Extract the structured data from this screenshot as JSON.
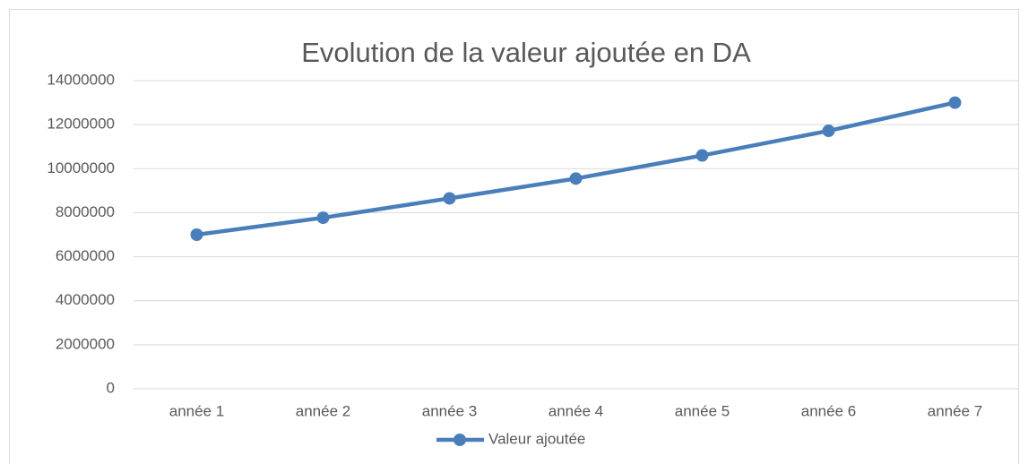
{
  "chart_data": {
    "type": "line",
    "title": "Evolution de la valeur ajoutée en DA",
    "categories": [
      "année 1",
      "année 2",
      "année 3",
      "année 4",
      "année 5",
      "année 6",
      "année 7"
    ],
    "series": [
      {
        "name": "Valeur ajoutée",
        "color": "#4a7ebb",
        "values": [
          7000000,
          7770000,
          8650000,
          9550000,
          10600000,
          11720000,
          13000000
        ]
      }
    ],
    "ylim": [
      0,
      14000000
    ],
    "yticks": [
      0,
      2000000,
      4000000,
      6000000,
      8000000,
      10000000,
      12000000,
      14000000
    ],
    "grid": true,
    "legend": "bottom"
  }
}
